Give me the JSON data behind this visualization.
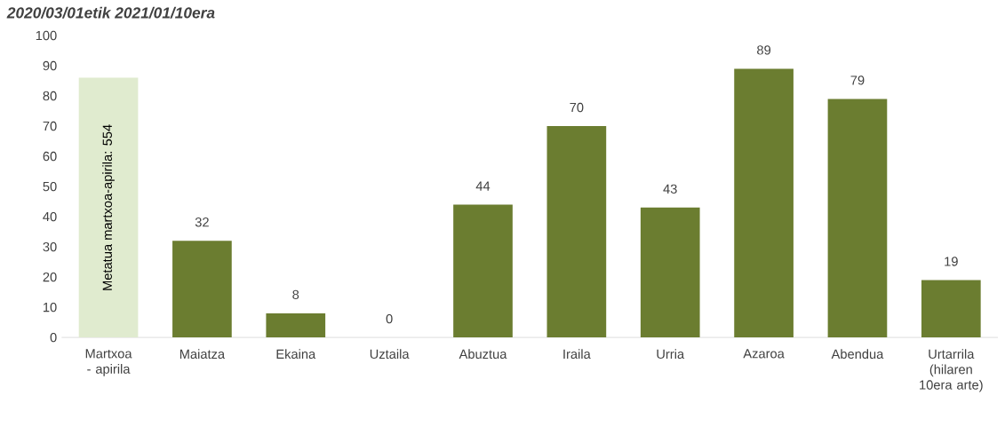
{
  "chart_data": {
    "type": "bar",
    "title": "2020/03/01etik 2021/01/10era",
    "categories": [
      "Martxoa - apirila",
      "Maiatza",
      "Ekaina",
      "Uztaila",
      "Abuztua",
      "Iraila",
      "Urria",
      "Azaroa",
      "Abendua",
      "Urtarrila (hilaren 10era arte)"
    ],
    "values": [
      86,
      32,
      8,
      0,
      44,
      70,
      43,
      89,
      79,
      19
    ],
    "colors": [
      "#e0ebcf",
      "#6b7d30",
      "#6b7d30",
      "#6b7d30",
      "#6b7d30",
      "#6b7d30",
      "#6b7d30",
      "#6b7d30",
      "#6b7d30",
      "#6b7d30"
    ],
    "value_labels": [
      null,
      "32",
      "8",
      "0",
      "44",
      "70",
      "43",
      "89",
      "79",
      "19"
    ],
    "annotations": [
      "Metatua martxoa-apirila: 554"
    ],
    "ylim": [
      0,
      100
    ],
    "yticks": [
      0,
      10,
      20,
      30,
      40,
      50,
      60,
      70,
      80,
      90,
      100
    ],
    "grid": false
  }
}
